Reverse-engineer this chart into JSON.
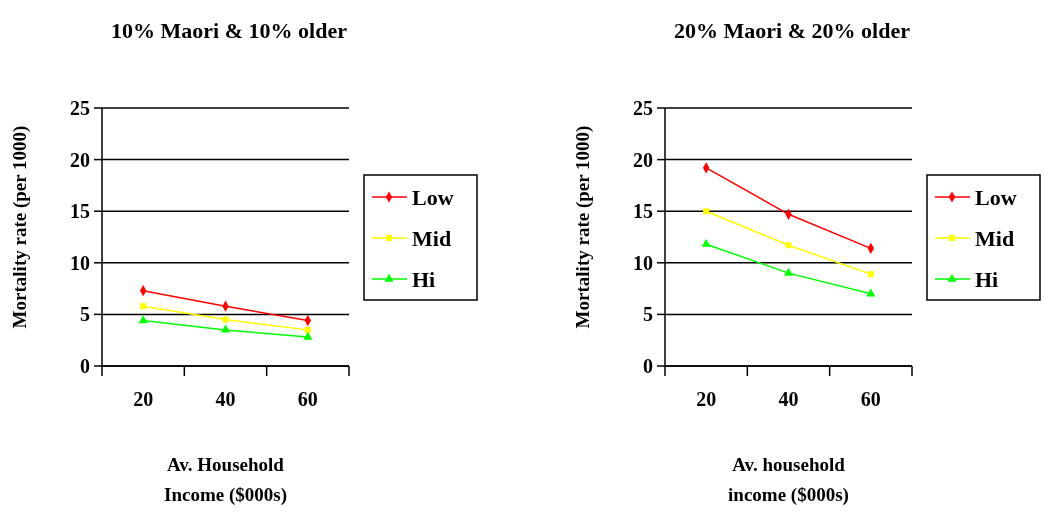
{
  "chart_data": [
    {
      "type": "line",
      "title": "10% Maori & 10% older",
      "xlabel": "Av. Household\nIncome ($000s)",
      "ylabel": "Mortality rate (per 1000)",
      "categories": [
        "20",
        "40",
        "60"
      ],
      "ylim": [
        0,
        25
      ],
      "yticks": [
        0,
        5,
        10,
        15,
        20,
        25
      ],
      "grid": "y",
      "legend": "right",
      "series": [
        {
          "name": "Low",
          "color": "#ff0000",
          "marker": "diamond",
          "values": [
            7.3,
            5.8,
            4.4
          ]
        },
        {
          "name": "Mid",
          "color": "#ffff00",
          "marker": "square",
          "values": [
            5.8,
            4.5,
            3.5
          ]
        },
        {
          "name": "Hi",
          "color": "#00ff00",
          "marker": "triangle",
          "values": [
            4.4,
            3.5,
            2.8
          ]
        }
      ]
    },
    {
      "type": "line",
      "title": "20% Maori & 20% older",
      "xlabel": "Av. household\nincome ($000s)",
      "ylabel": "Mortality rate (per 1000)",
      "categories": [
        "20",
        "40",
        "60"
      ],
      "ylim": [
        0,
        25
      ],
      "yticks": [
        0,
        5,
        10,
        15,
        20,
        25
      ],
      "grid": "y",
      "legend": "right",
      "series": [
        {
          "name": "Low",
          "color": "#ff0000",
          "marker": "diamond",
          "values": [
            19.2,
            14.7,
            11.4
          ]
        },
        {
          "name": "Mid",
          "color": "#ffff00",
          "marker": "square",
          "values": [
            15,
            11.7,
            8.9
          ]
        },
        {
          "name": "Hi",
          "color": "#00ff00",
          "marker": "triangle",
          "values": [
            11.8,
            9,
            7
          ]
        }
      ]
    }
  ]
}
